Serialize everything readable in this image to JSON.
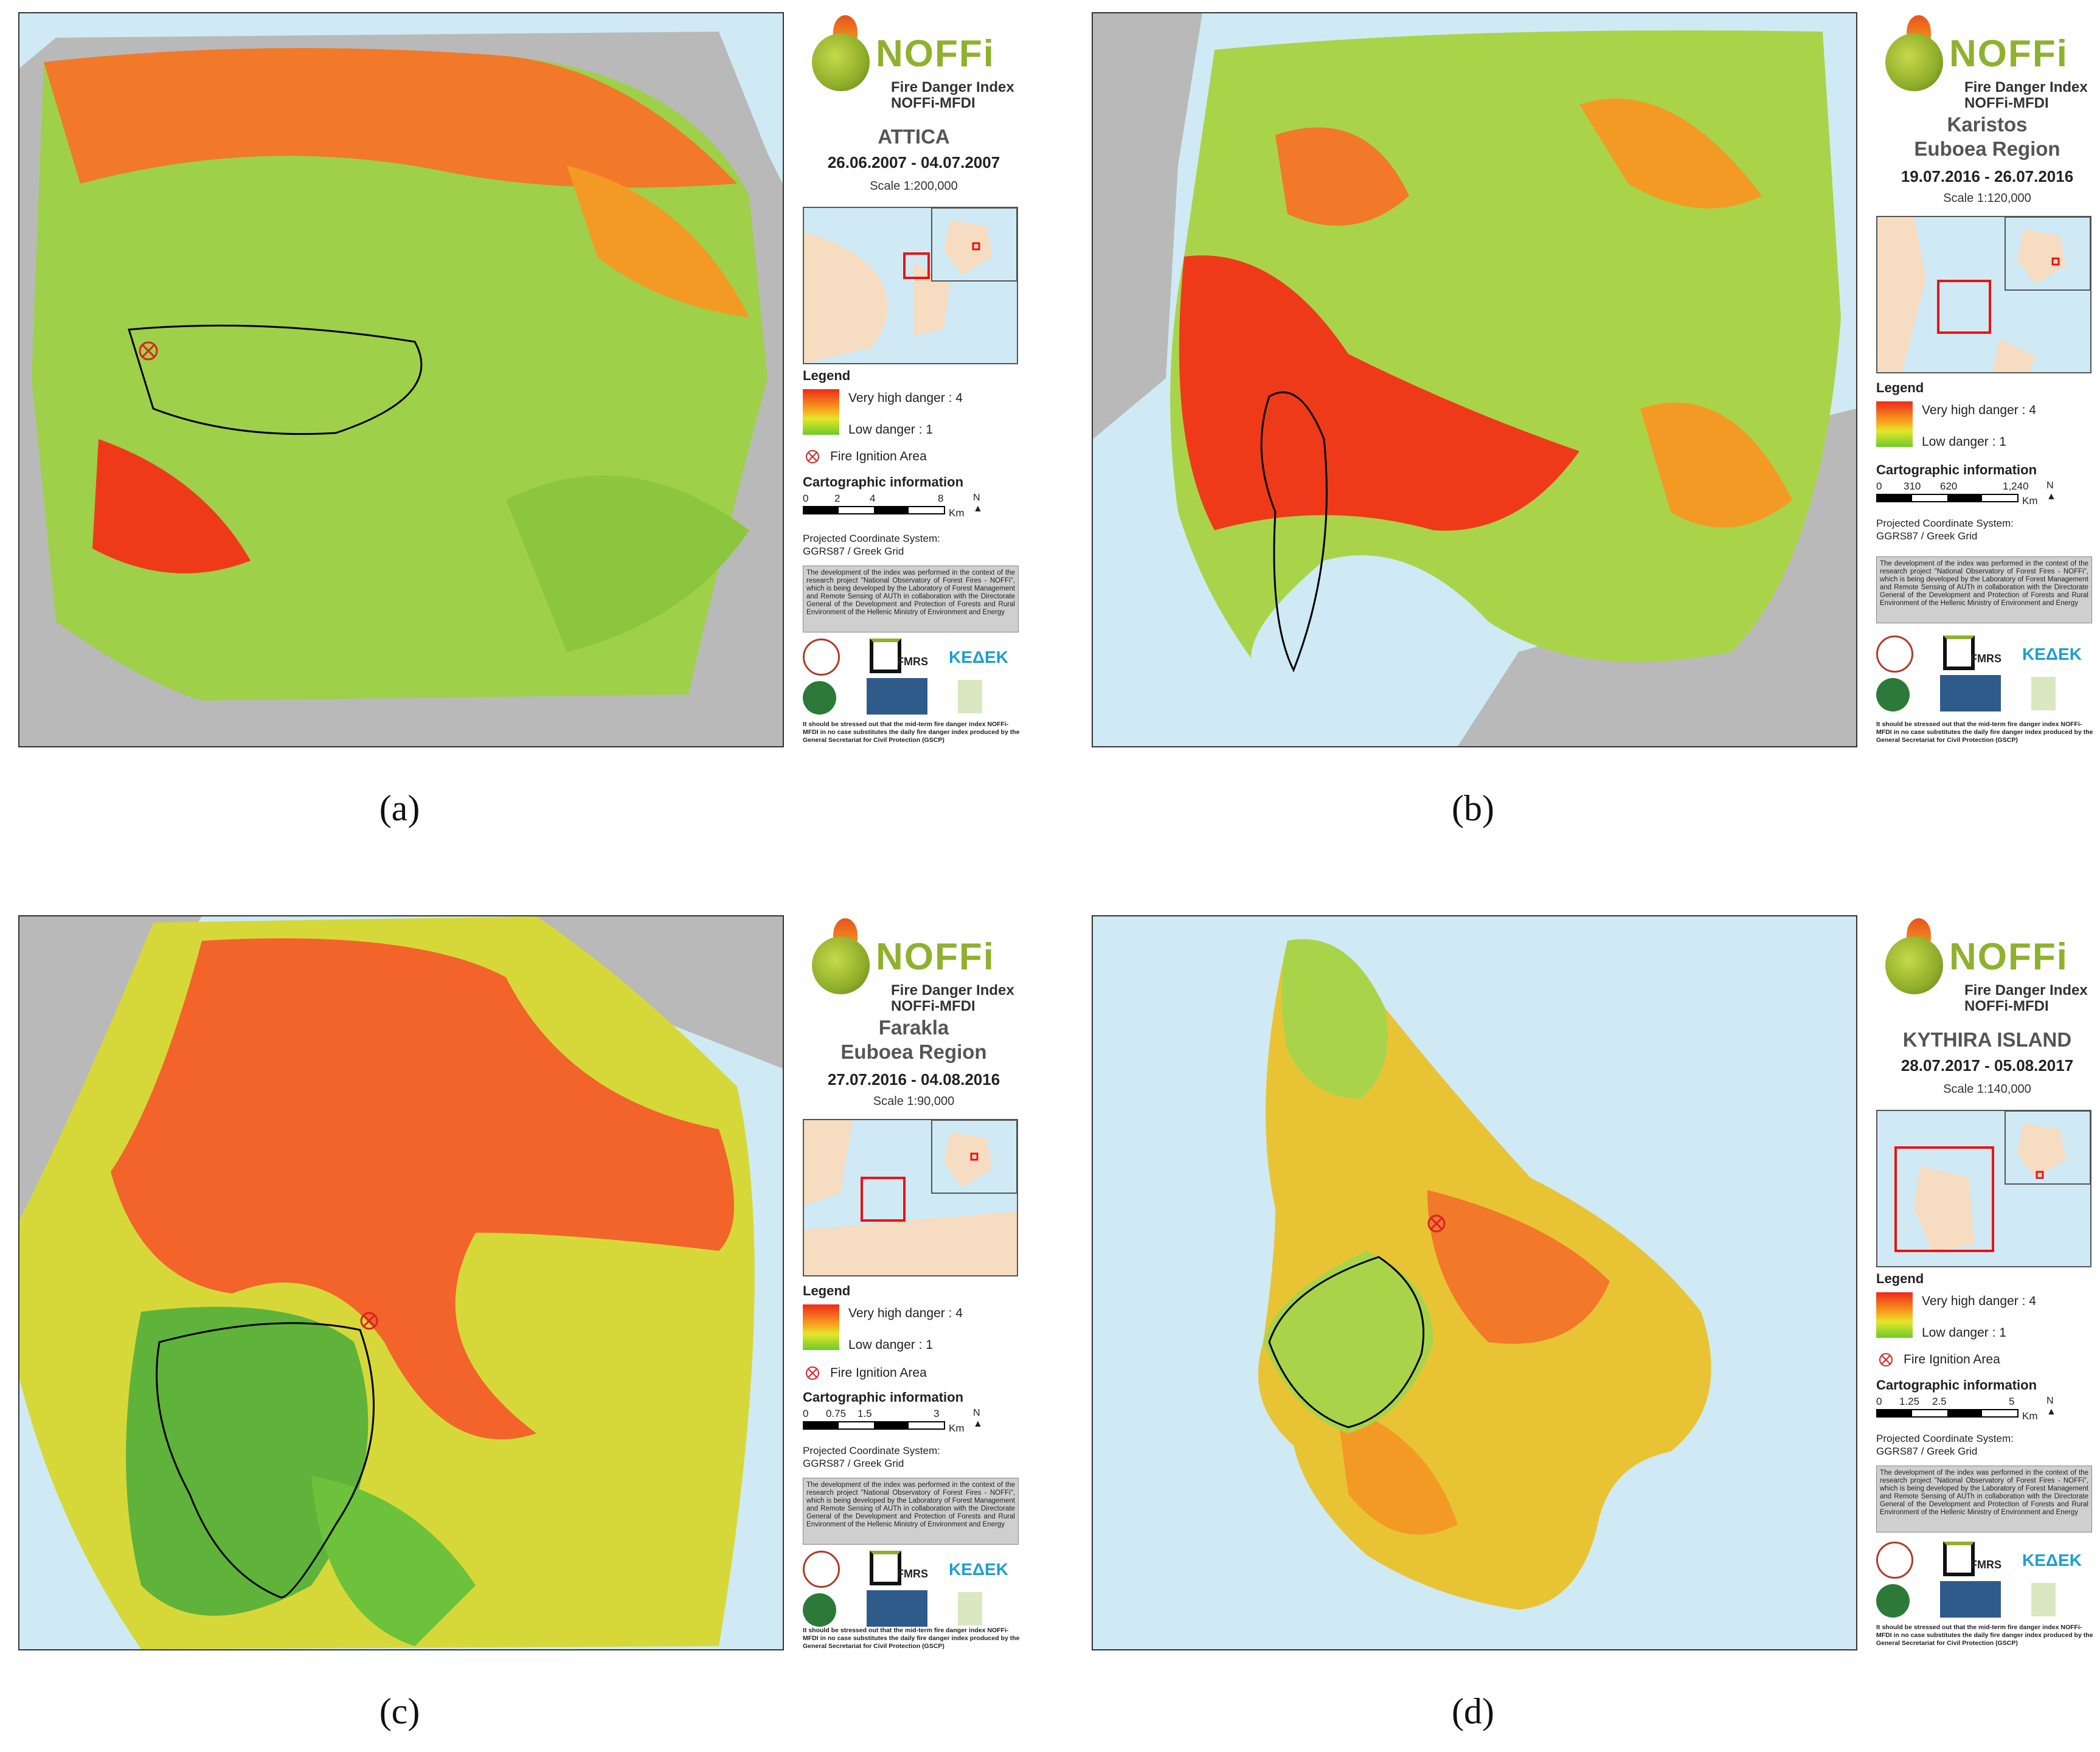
{
  "panels": [
    {
      "caption": "(a)",
      "logo": {
        "word": "NOFFi",
        "line1": "Fire Danger Index",
        "line2": "NOFFi-MFDI"
      },
      "region": [
        "ATTICA"
      ],
      "dates": "26.06.2007 - 04.07.2007",
      "scale": "Scale    1:200,000",
      "legend": {
        "title": "Legend",
        "high": "Very high danger : 4",
        "low": "Low danger : 1",
        "ignition": "Fire Ignition Area"
      },
      "carto": {
        "title": "Cartographic information",
        "ticks": [
          "0",
          "2",
          "4",
          "8"
        ],
        "unit": "Km",
        "north": "N",
        "projection": "Projected Coordinate System:",
        "grid": "GGRS87 / Greek Grid"
      },
      "colors": {
        "sea": "#cfeaf5",
        "land": "#b9b9b9"
      }
    },
    {
      "caption": "(b)",
      "logo": {
        "word": "NOFFi",
        "line1": "Fire Danger Index",
        "line2": "NOFFi-MFDI"
      },
      "region": [
        "Karistos",
        "Euboea Region"
      ],
      "dates": "19.07.2016 - 26.07.2016",
      "scale": "Scale    1:120,000",
      "legend": {
        "title": "Legend",
        "high": "Very high danger : 4",
        "low": "Low danger : 1",
        "ignition": ""
      },
      "carto": {
        "title": "Cartographic information",
        "ticks": [
          "0",
          "310",
          "620",
          "1,240"
        ],
        "unit": "Km",
        "north": "N",
        "projection": "Projected Coordinate System:",
        "grid": "GGRS87 / Greek Grid"
      },
      "colors": {
        "sea": "#cfeaf5",
        "land": "#b9b9b9"
      }
    },
    {
      "caption": "(c)",
      "logo": {
        "word": "NOFFi",
        "line1": "Fire Danger Index",
        "line2": "NOFFi-MFDI"
      },
      "region": [
        "Farakla",
        "Euboea Region"
      ],
      "dates": "27.07.2016 - 04.08.2016",
      "scale": "Scale    1:90,000",
      "legend": {
        "title": "Legend",
        "high": "Very high danger : 4",
        "low": "Low danger : 1",
        "ignition": "Fire Ignition Area"
      },
      "carto": {
        "title": "Cartographic information",
        "ticks": [
          "0",
          "0.75",
          "1.5",
          "3"
        ],
        "unit": "Km",
        "north": "N",
        "projection": "Projected Coordinate System:",
        "grid": "GGRS87 / Greek Grid"
      },
      "colors": {
        "sea": "#cfeaf5",
        "land": "#b9b9b9"
      }
    },
    {
      "caption": "(d)",
      "logo": {
        "word": "NOFFi",
        "line1": "Fire Danger Index",
        "line2": "NOFFi-MFDI"
      },
      "region": [
        "KYTHIRA ISLAND"
      ],
      "dates": "28.07.2017 - 05.08.2017",
      "scale": "Scale    1:140,000",
      "legend": {
        "title": "Legend",
        "high": "Very high danger : 4",
        "low": "Low danger : 1",
        "ignition": "Fire Ignition Area"
      },
      "carto": {
        "title": "Cartographic information",
        "ticks": [
          "0",
          "1.25",
          "2.5",
          "5"
        ],
        "unit": "Km",
        "north": "N",
        "projection": "Projected Coordinate System:",
        "grid": "GGRS87 / Greek Grid"
      },
      "colors": {
        "sea": "#cfeaf5",
        "land": "#b9b9b9"
      }
    }
  ],
  "note": "The development of the index was performed in the context of the research project \"National Observatory of Forest Fires - NOFFi\", which is being developed by the Laboratory of Forest Management and Remote Sensing of AUTh in collaboration with the Directorate General of the Development and Protection of Forests and Rural Environment of the Hellenic Ministry of Environment and Energy",
  "disclaimer": "It should be stressed out that the mid-term fire danger index NOFFi-MFDI in no case substitutes the daily fire danger index produced by the General Secretariat for Civil Protection (GSCP)",
  "partners": {
    "fmrs": "FMRS",
    "kedek": "ΚΕΔΕΚ"
  },
  "danger_colors": {
    "very_high": "#ef2a1a",
    "high": "#f7a51f",
    "medium": "#e6e62a",
    "low": "#6ccc2a"
  }
}
